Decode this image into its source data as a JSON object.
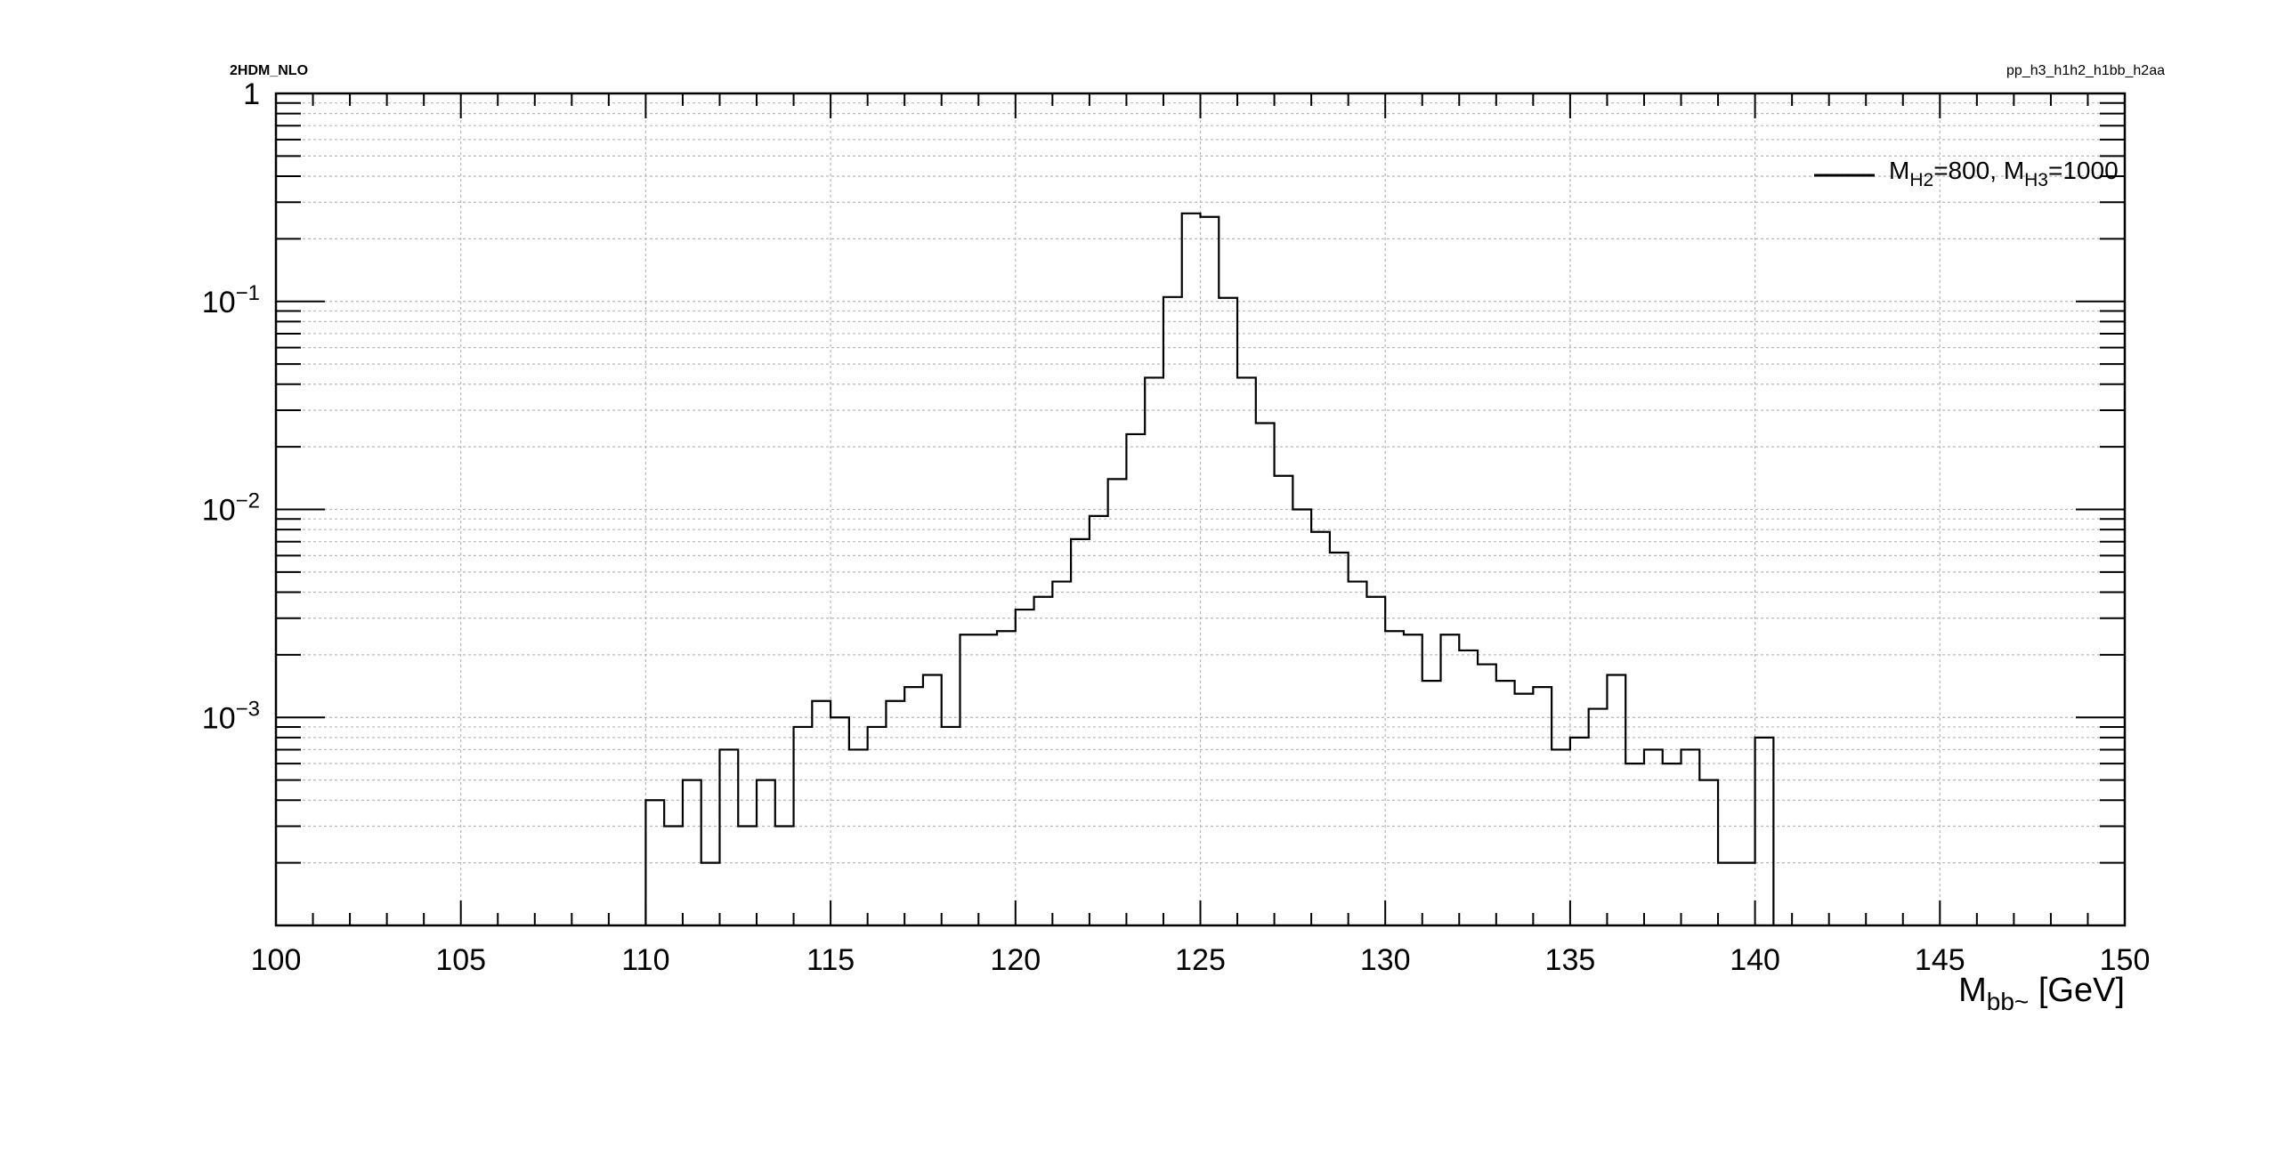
{
  "header": {
    "left_label": "2HDM_NLO",
    "right_label": "pp_h3_h1h2_h1bb_h2aa"
  },
  "chart_data": {
    "type": "histogram",
    "scale_y": "log",
    "xlim": [
      100,
      150
    ],
    "ylim": [
      0.0001,
      1
    ],
    "grid": true,
    "xticks": [
      100,
      105,
      110,
      115,
      120,
      125,
      130,
      135,
      140,
      145,
      150
    ],
    "xtick_labels": [
      "100",
      "105",
      "110",
      "115",
      "120",
      "125",
      "130",
      "135",
      "140",
      "145",
      "150"
    ],
    "yticks": [
      1,
      0.1,
      0.01,
      0.001
    ],
    "ytick_labels": [
      {
        "base": "1",
        "exp": ""
      },
      {
        "base": "10",
        "exp": "−1"
      },
      {
        "base": "10",
        "exp": "−2"
      },
      {
        "base": "10",
        "exp": "−3"
      }
    ],
    "xlabel": {
      "main": "M",
      "sub": "bb~",
      "unit": " [GeV]"
    },
    "ylabel": "",
    "legend": {
      "placement": "top-right",
      "parts": [
        {
          "text": "M",
          "sub": false
        },
        {
          "text": "H2",
          "sub": true
        },
        {
          "text": "=800, M",
          "sub": false
        },
        {
          "text": "H3",
          "sub": true
        },
        {
          "text": "=1000",
          "sub": false
        }
      ]
    },
    "series": [
      {
        "bin_width": 0.5,
        "bin_edges_start": 110,
        "values": [
          0.0004,
          0.0003,
          0.0005,
          0.0002,
          0.0007,
          0.0003,
          0.0005,
          0.0003,
          0.0009,
          0.0012,
          0.001,
          0.0007,
          0.0009,
          0.0012,
          0.0014,
          0.0016,
          0.0009,
          0.0025,
          0.0025,
          0.0026,
          0.0033,
          0.0038,
          0.0045,
          0.0072,
          0.0093,
          0.014,
          0.023,
          0.043,
          0.105,
          0.265,
          0.255,
          0.104,
          0.043,
          0.026,
          0.0145,
          0.01,
          0.0078,
          0.0062,
          0.0045,
          0.0038,
          0.0026,
          0.0025,
          0.0015,
          0.0025,
          0.0021,
          0.0018,
          0.0015,
          0.0013,
          0.0014,
          0.0007,
          0.0008,
          0.0011,
          0.0016,
          0.0006,
          0.0007,
          0.0006,
          0.0007,
          0.0005,
          0.0002,
          0.0002,
          0.0008
        ]
      }
    ]
  }
}
